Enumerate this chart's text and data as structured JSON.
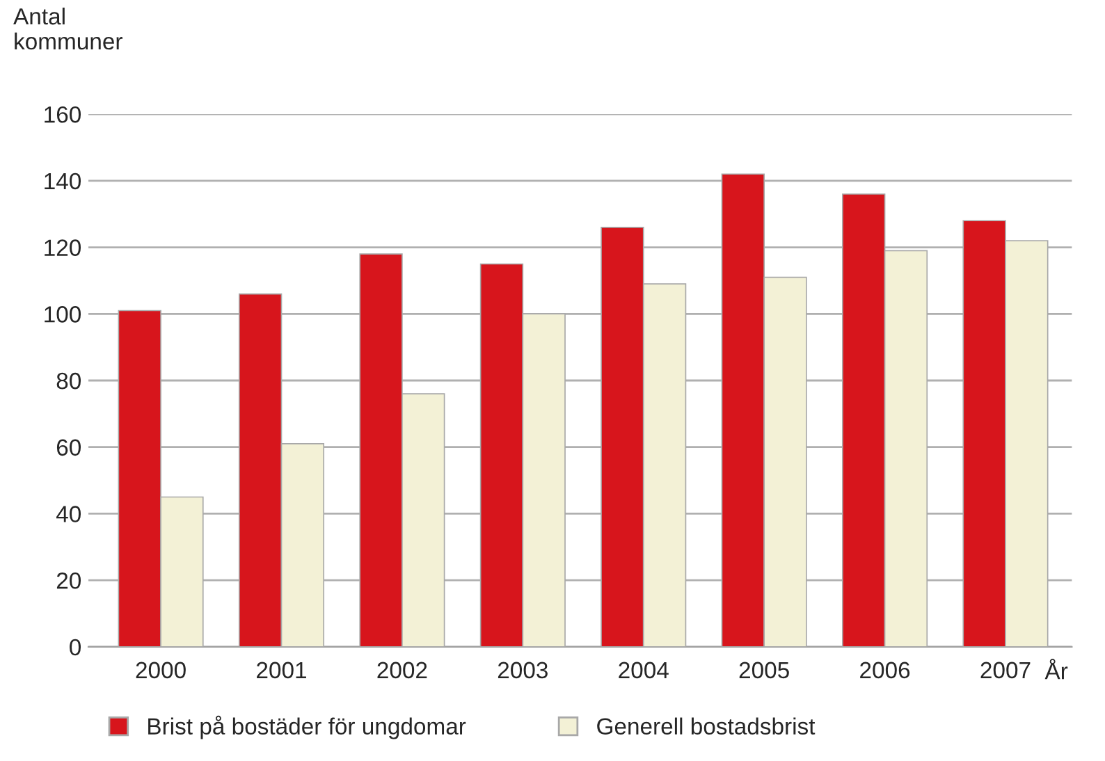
{
  "chart_data": {
    "type": "bar",
    "ylabel": "Antal\nkommuner",
    "xlabel": "År",
    "categories": [
      "2000",
      "2001",
      "2002",
      "2003",
      "2004",
      "2005",
      "2006",
      "2007"
    ],
    "series": [
      {
        "name": "Brist på bostäder för ungdomar",
        "color": "#d7151c",
        "values": [
          101,
          106,
          118,
          115,
          126,
          142,
          136,
          128
        ]
      },
      {
        "name": "Generell bostadsbrist",
        "color": "#f3f1d6",
        "values": [
          45,
          61,
          76,
          100,
          109,
          111,
          119,
          122
        ]
      }
    ],
    "ylim": [
      0,
      160
    ],
    "yticks": [
      0,
      20,
      40,
      60,
      80,
      100,
      120,
      140,
      160
    ],
    "grid": "y",
    "legend": "bottom"
  }
}
